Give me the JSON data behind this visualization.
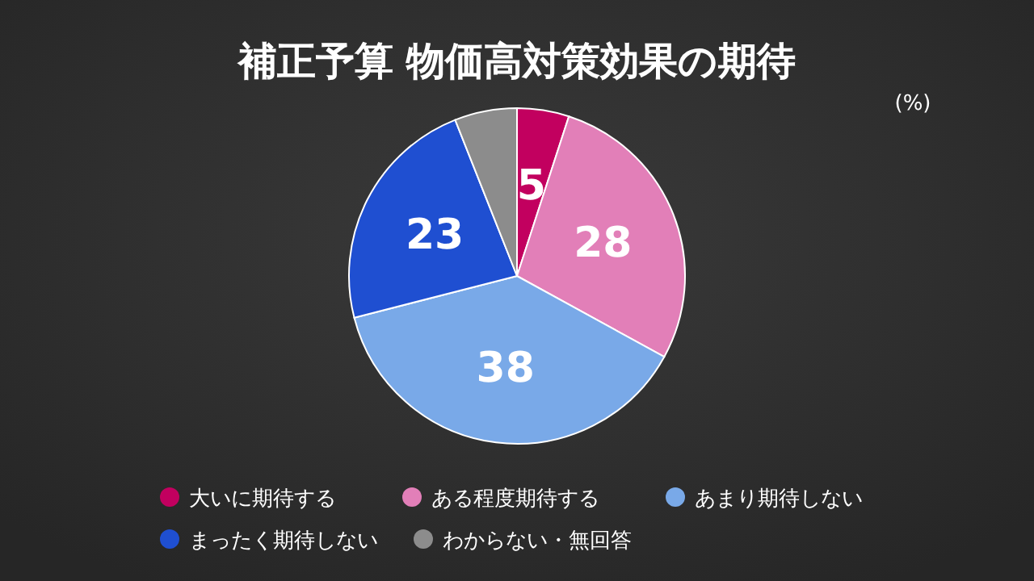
{
  "chart_data": {
    "type": "pie",
    "title": "補正予算 物価高対策効果の期待",
    "annotations": [
      "(%)"
    ],
    "categories": [
      "大いに期待する",
      "ある程度期待する",
      "あまり期待しない",
      "まったく期待しない",
      "わからない・無回答"
    ],
    "values": [
      5,
      28,
      38,
      23,
      6
    ],
    "value_labels": [
      "5",
      "28",
      "38",
      "23",
      null
    ],
    "colors": [
      "#c2005f",
      "#e27fb8",
      "#79a9e8",
      "#1f4fd1",
      "#8c8c8c"
    ],
    "legend": "bottom"
  }
}
